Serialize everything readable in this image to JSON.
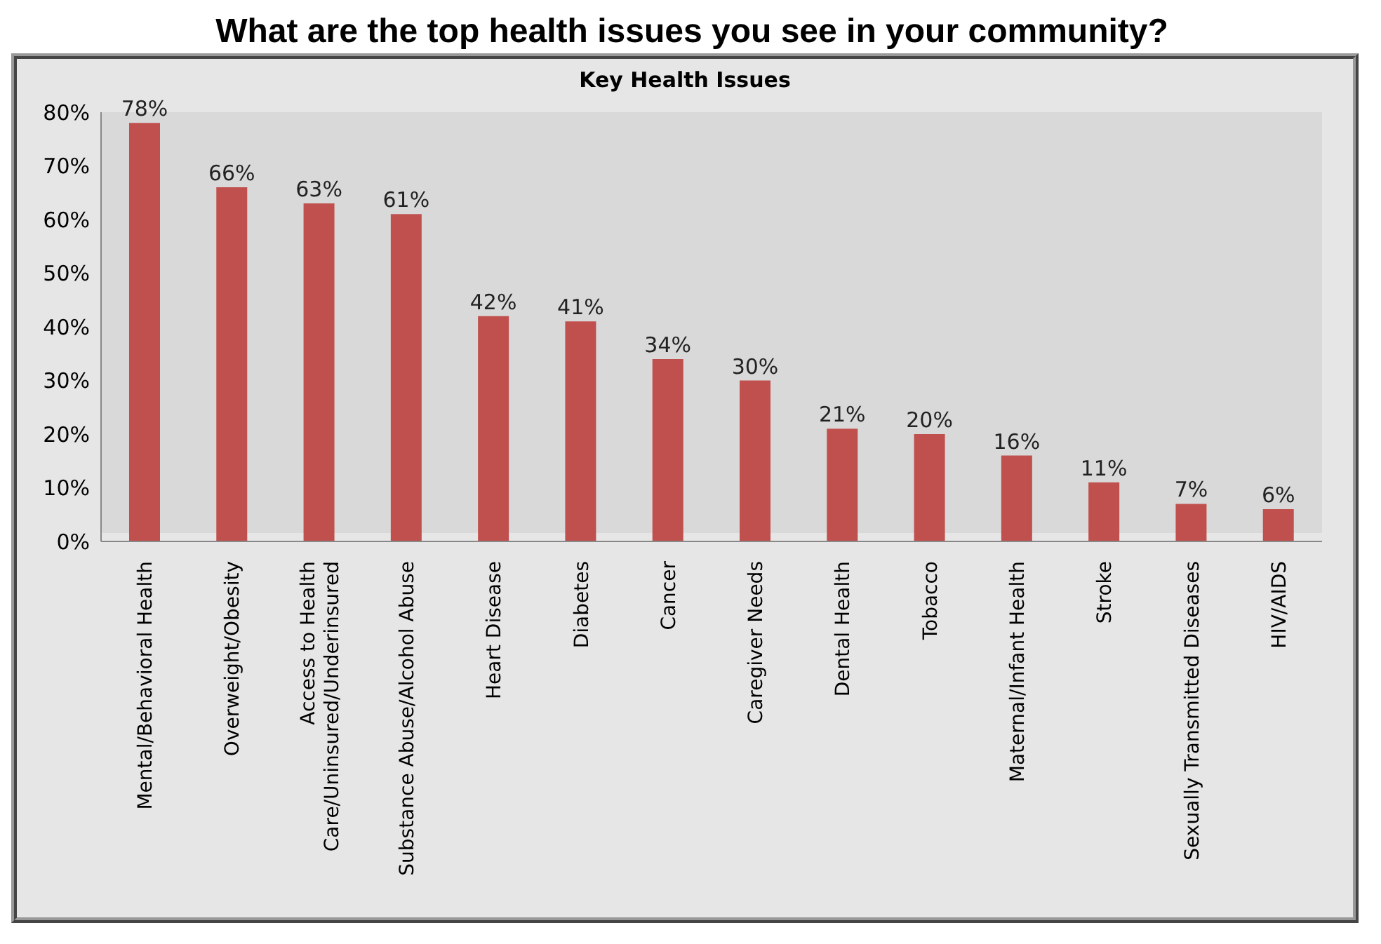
{
  "chart_data": {
    "type": "bar",
    "title": "What are the top health issues you see in your community?",
    "subtitle": "Key Health Issues",
    "categories": [
      "Mental/Behavioral Health",
      "Overweight/Obesity",
      "Access to Health\nCare/Uninsured/Underinsured",
      "Substance Abuse/Alcohol Abuse",
      "Heart Disease",
      "Diabetes",
      "Cancer",
      "Caregiver Needs",
      "Dental Health",
      "Tobacco",
      "Maternal/Infant Health",
      "Stroke",
      "Sexually Transmitted Diseases",
      "HIV/AIDS"
    ],
    "values": [
      78,
      66,
      63,
      61,
      42,
      41,
      34,
      30,
      21,
      20,
      16,
      11,
      7,
      6
    ],
    "value_labels": [
      "78%",
      "66%",
      "63%",
      "61%",
      "42%",
      "41%",
      "34%",
      "30%",
      "21%",
      "20%",
      "16%",
      "11%",
      "7%",
      "6%"
    ],
    "color": "#c0504d",
    "ylim": [
      0,
      80
    ],
    "yticks": [
      {
        "value": 0,
        "label": "0%"
      },
      {
        "value": 10,
        "label": "10%"
      },
      {
        "value": 20,
        "label": "20%"
      },
      {
        "value": 30,
        "label": "30%"
      },
      {
        "value": 40,
        "label": "40%"
      },
      {
        "value": 50,
        "label": "50%"
      },
      {
        "value": 60,
        "label": "60%"
      },
      {
        "value": 70,
        "label": "70%"
      },
      {
        "value": 80,
        "label": "80%"
      }
    ],
    "grid": false,
    "legend": false
  }
}
